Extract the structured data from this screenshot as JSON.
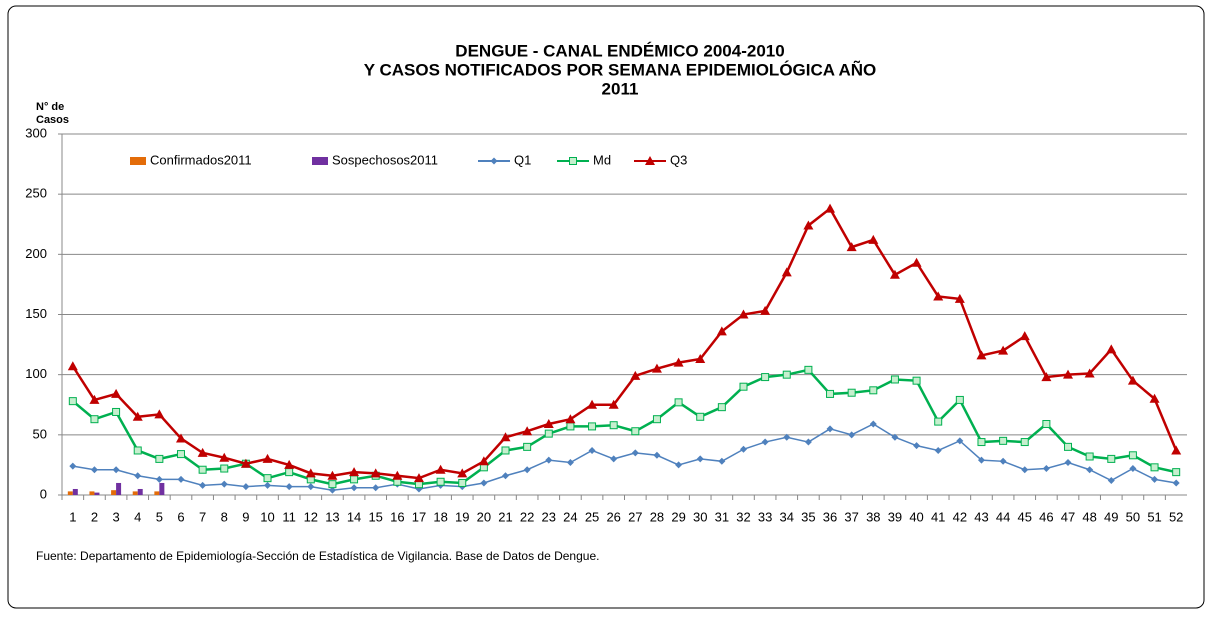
{
  "chart_data": {
    "type": "combo",
    "title": [
      "DENGUE - CANAL ENDÉMICO 2004-2010",
      "Y CASOS NOTIFICADOS POR SEMANA EPIDEMIOLÓGICA  AÑO",
      "2011"
    ],
    "y_label": [
      "N° de",
      "Casos"
    ],
    "source": "Fuente: Departamento de Epidemiología-Sección de Estadística de Vigilancia. Base de Datos de Dengue.",
    "categories": [
      "1",
      "2",
      "3",
      "4",
      "5",
      "6",
      "7",
      "8",
      "9",
      "10",
      "11",
      "12",
      "13",
      "14",
      "15",
      "16",
      "17",
      "18",
      "19",
      "20",
      "21",
      "22",
      "23",
      "24",
      "25",
      "26",
      "27",
      "28",
      "29",
      "30",
      "31",
      "32",
      "33",
      "34",
      "35",
      "36",
      "37",
      "38",
      "39",
      "40",
      "41",
      "42",
      "43",
      "44",
      "45",
      "46",
      "47",
      "48",
      "49",
      "50",
      "51",
      "52"
    ],
    "ylim": [
      0,
      300
    ],
    "yticks": [
      0,
      50,
      100,
      150,
      200,
      250,
      300
    ],
    "grid": true,
    "series": [
      {
        "name": "Confirmados2011",
        "kind": "bar",
        "color": "#e36c09",
        "values": [
          3,
          3,
          4,
          3,
          3,
          null,
          null,
          null,
          null,
          null,
          null,
          null,
          null,
          null,
          null,
          null,
          null,
          null,
          null,
          null,
          null,
          null,
          null,
          null,
          null,
          null,
          null,
          null,
          null,
          null,
          null,
          null,
          null,
          null,
          null,
          null,
          null,
          null,
          null,
          null,
          null,
          null,
          null,
          null,
          null,
          null,
          null,
          null,
          null,
          null,
          null,
          null
        ]
      },
      {
        "name": "Sospechosos2011",
        "kind": "bar",
        "color": "#7030a0",
        "values": [
          5,
          2,
          10,
          5,
          10,
          null,
          null,
          null,
          null,
          null,
          null,
          null,
          null,
          null,
          null,
          null,
          null,
          null,
          null,
          null,
          null,
          null,
          null,
          null,
          null,
          null,
          null,
          null,
          null,
          null,
          null,
          null,
          null,
          null,
          null,
          null,
          null,
          null,
          null,
          null,
          null,
          null,
          null,
          null,
          null,
          null,
          null,
          null,
          null,
          null,
          null,
          null
        ]
      },
      {
        "name": "Q1",
        "kind": "line",
        "marker": "diamond",
        "color": "#4f81bd",
        "values": [
          24,
          21,
          21,
          16,
          13,
          13,
          8,
          9,
          7,
          8,
          7,
          7,
          4,
          6,
          6,
          9,
          5,
          8,
          7,
          10,
          16,
          21,
          29,
          27,
          37,
          30,
          35,
          33,
          25,
          30,
          28,
          38,
          44,
          48,
          44,
          55,
          50,
          59,
          48,
          41,
          37,
          45,
          29,
          28,
          21,
          22,
          27,
          21,
          12,
          22,
          13,
          10
        ]
      },
      {
        "name": "Md",
        "kind": "line",
        "marker": "square",
        "color": "#00b050",
        "values": [
          78,
          63,
          69,
          37,
          30,
          34,
          21,
          22,
          26,
          14,
          19,
          13,
          9,
          13,
          16,
          11,
          9,
          11,
          10,
          23,
          37,
          40,
          51,
          57,
          57,
          58,
          53,
          63,
          77,
          65,
          73,
          90,
          98,
          100,
          104,
          84,
          85,
          87,
          96,
          95,
          61,
          79,
          44,
          45,
          44,
          59,
          40,
          32,
          30,
          33,
          23,
          19
        ]
      },
      {
        "name": "Q3",
        "kind": "line",
        "marker": "triangle",
        "color": "#c00000",
        "values": [
          107,
          79,
          84,
          65,
          67,
          47,
          35,
          31,
          26,
          30,
          25,
          18,
          16,
          19,
          18,
          16,
          14,
          21,
          18,
          28,
          48,
          53,
          59,
          63,
          75,
          75,
          99,
          105,
          110,
          113,
          136,
          150,
          153,
          185,
          224,
          238,
          206,
          212,
          183,
          193,
          165,
          163,
          116,
          120,
          132,
          98,
          100,
          101,
          121,
          95,
          80,
          37
        ]
      }
    ]
  }
}
